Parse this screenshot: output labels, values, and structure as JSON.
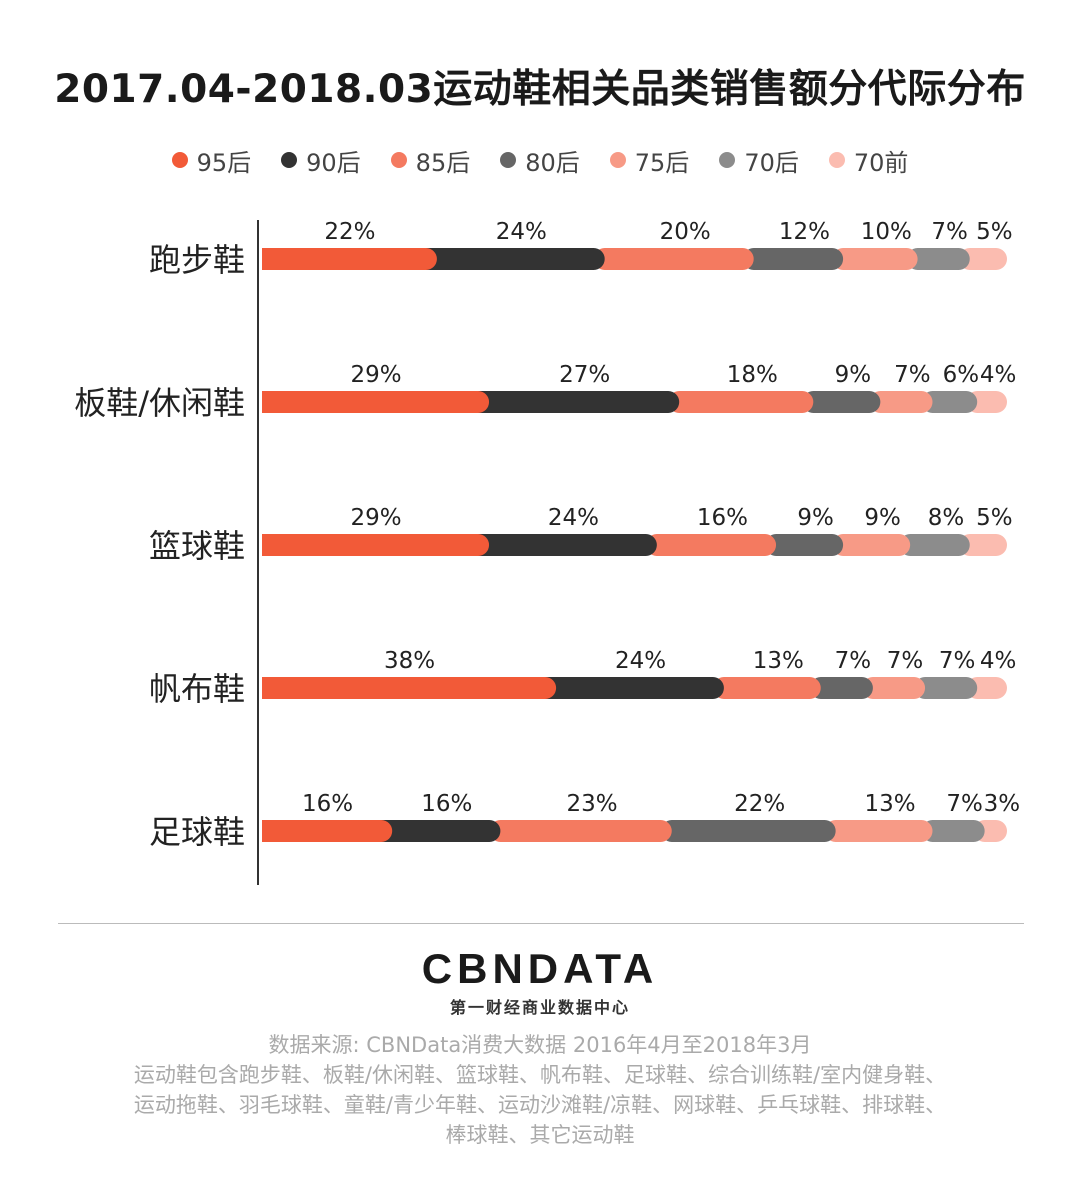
{
  "title": "2017.04-2018.03运动鞋相关品类销售额分代际分布",
  "legend": [
    {
      "name": "95后",
      "color": "#f25a38"
    },
    {
      "name": "90后",
      "color": "#333333"
    },
    {
      "name": "85后",
      "color": "#f47a60"
    },
    {
      "name": "80后",
      "color": "#666666"
    },
    {
      "name": "75后",
      "color": "#f79a86"
    },
    {
      "name": "70后",
      "color": "#8c8c8c"
    },
    {
      "name": "70前",
      "color": "#fbbcb0"
    }
  ],
  "chart_data": {
    "type": "bar",
    "orientation": "horizontal",
    "stacked": true,
    "title": "2017.04-2018.03运动鞋相关品类销售额分代际分布",
    "categories": [
      "跑步鞋",
      "板鞋/休闲鞋",
      "篮球鞋",
      "帆布鞋",
      "足球鞋"
    ],
    "series": [
      {
        "name": "95后",
        "values": [
          22,
          29,
          29,
          38,
          16
        ]
      },
      {
        "name": "90后",
        "values": [
          24,
          27,
          24,
          24,
          16
        ]
      },
      {
        "name": "85后",
        "values": [
          20,
          18,
          16,
          13,
          23
        ]
      },
      {
        "name": "80后",
        "values": [
          12,
          9,
          9,
          7,
          22
        ]
      },
      {
        "name": "75后",
        "values": [
          10,
          7,
          9,
          7,
          13
        ]
      },
      {
        "name": "70后",
        "values": [
          7,
          6,
          8,
          7,
          7
        ]
      },
      {
        "name": "70前",
        "values": [
          5,
          4,
          5,
          4,
          3
        ]
      }
    ],
    "unit": "%",
    "legend_position": "top"
  },
  "footer": {
    "logo": "CBNDATA",
    "logo_sub": "第一财经商业数据中心",
    "source_lines": [
      "数据来源: CBNData消费大数据   2016年4月至2018年3月",
      "运动鞋包含跑步鞋、板鞋/休闲鞋、篮球鞋、帆布鞋、足球鞋、综合训练鞋/室内健身鞋、",
      "运动拖鞋、羽毛球鞋、童鞋/青少年鞋、运动沙滩鞋/凉鞋、网球鞋、乒乓球鞋、排球鞋、",
      "棒球鞋、其它运动鞋"
    ]
  }
}
